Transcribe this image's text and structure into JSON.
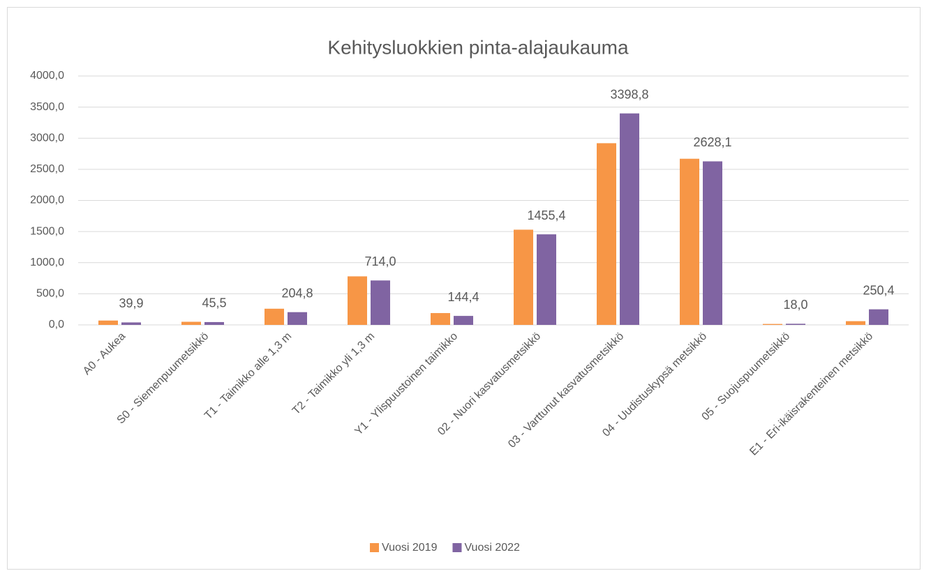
{
  "chart_data": {
    "type": "bar",
    "title": "Kehitysluokkien pinta-alajaukauma",
    "categories": [
      "A0 - Aukea",
      "S0 - Siemenpuumetsikkö",
      "T1 - Taimikko alle 1,3 m",
      "T2 - Taimikko yli 1,3 m",
      "Y1 - Ylispuustoinen taimikko",
      "02 - Nuori kasvatusmetsikkö",
      "03 - Varttunut kasvatusmetsikkö",
      "04 - Uudistuskypsä metsikkö",
      "05 - Suojuspuumetsikkö",
      "E1 - Eri-ikäisrakenteinen metsikkö"
    ],
    "series": [
      {
        "name": "Vuosi 2019",
        "color": "#f79646",
        "values": [
          70,
          50,
          260,
          780,
          190,
          1530,
          2920,
          2670,
          15,
          60
        ]
      },
      {
        "name": "Vuosi 2022",
        "color": "#8064a2",
        "values": [
          39.9,
          45.5,
          204.8,
          714.0,
          144.4,
          1455.4,
          3398.8,
          2628.1,
          18.0,
          250.4
        ],
        "value_labels": [
          "39,9",
          "45,5",
          "204,8",
          "714,0",
          "144,4",
          "1455,4",
          "3398,8",
          "2628,1",
          "18,0",
          "250,4"
        ]
      }
    ],
    "ylim": [
      0,
      4000
    ],
    "yticks": [
      {
        "value": 0,
        "label": "0,0"
      },
      {
        "value": 500,
        "label": "500,0"
      },
      {
        "value": 1000,
        "label": "1000,0"
      },
      {
        "value": 1500,
        "label": "1500,0"
      },
      {
        "value": 2000,
        "label": "2000,0"
      },
      {
        "value": 2500,
        "label": "2500,0"
      },
      {
        "value": 3000,
        "label": "3000,0"
      },
      {
        "value": 3500,
        "label": "3500,0"
      },
      {
        "value": 4000,
        "label": "4000,0"
      }
    ],
    "grid": true,
    "legend": "bottom"
  }
}
